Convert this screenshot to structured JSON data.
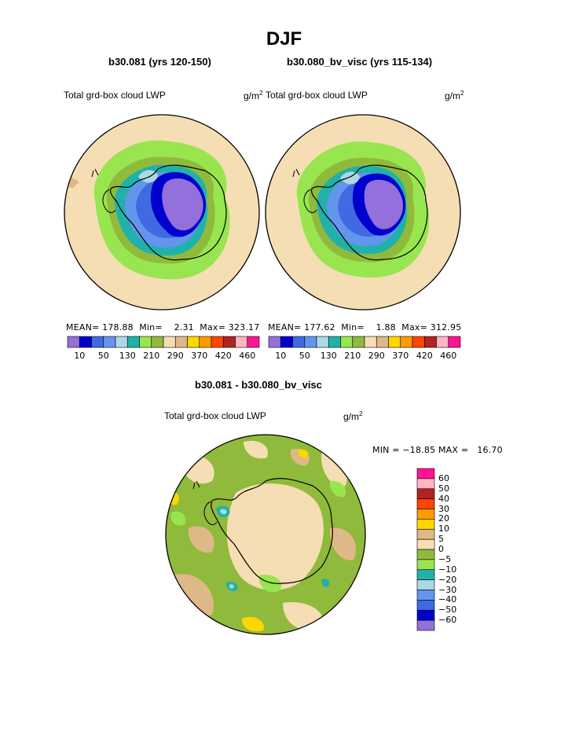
{
  "title": "DJF",
  "panels": [
    {
      "case_label": "b30.081 (yrs 120-150)",
      "variable": "Total grd-box cloud LWP",
      "units": "g/m",
      "units_sup": "2",
      "stats": {
        "mean_label": "MEAN=",
        "mean": "178.88",
        "min_label": "Min=",
        "min": "2.31",
        "max_label": "Max=",
        "max": "323.17"
      },
      "colorbar_ticks": [
        "10",
        "50",
        "130",
        "210",
        "290",
        "370",
        "420",
        "460"
      ]
    },
    {
      "case_label": "b30.080_bv_visc (yrs 115-134)",
      "variable": "Total grd-box cloud LWP",
      "units": "g/m",
      "units_sup": "2",
      "stats": {
        "mean_label": "MEAN=",
        "mean": "177.62",
        "min_label": "Min=",
        "min": "1.88",
        "max_label": "Max=",
        "max": "312.95"
      },
      "colorbar_ticks": [
        "10",
        "50",
        "130",
        "210",
        "290",
        "370",
        "420",
        "460"
      ]
    }
  ],
  "diff": {
    "label": "b30.081 - b30.080_bv_visc",
    "variable": "Total grd-box cloud LWP",
    "units": "g/m",
    "units_sup": "2",
    "minmax": "MIN = −18.85 MAX =   16.70",
    "levels": [
      "60",
      "50",
      "40",
      "30",
      "20",
      "10",
      "5",
      "0",
      "−5",
      "−10",
      "−20",
      "−30",
      "−40",
      "−50",
      "−60"
    ]
  },
  "colors": {
    "abs_scale": [
      "#9370db",
      "#0000cd",
      "#4169e1",
      "#6495ed",
      "#add8e6",
      "#20b2aa",
      "#98e550",
      "#90ba3c",
      "#f5deb3",
      "#deb887",
      "#ffd700",
      "#ff9a00",
      "#ff4500",
      "#b22222",
      "#ffb6c1",
      "#ff1493"
    ],
    "diff_scale": [
      "#ff1493",
      "#ffb6c1",
      "#b22222",
      "#ff4500",
      "#ff9a00",
      "#ffd700",
      "#deb887",
      "#f5deb3",
      "#90ba3c",
      "#98e550",
      "#20b2aa",
      "#add8e6",
      "#6495ed",
      "#4169e1",
      "#0000cd",
      "#9370db"
    ]
  }
}
